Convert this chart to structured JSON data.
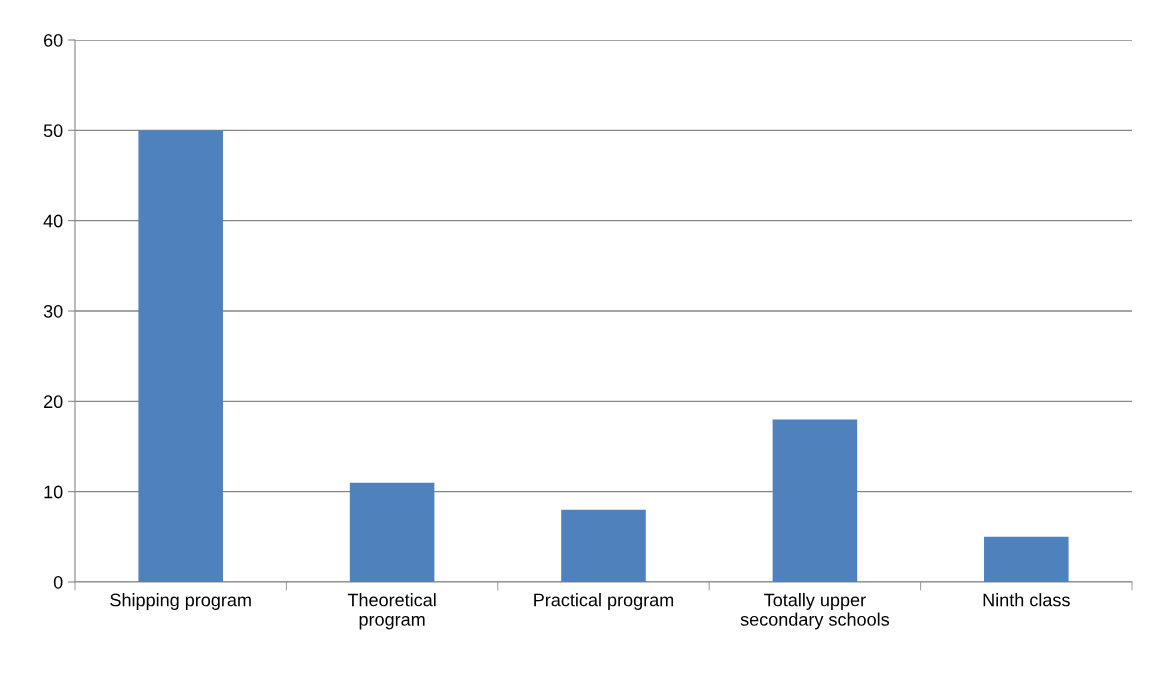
{
  "chart_data": {
    "type": "bar",
    "categories": [
      "Shipping program",
      "Theoretical program",
      "Practical program",
      "Totally upper secondary schools",
      "Ninth class"
    ],
    "values": [
      50,
      11,
      8,
      18,
      5
    ],
    "color": "#4f81bd",
    "ylim": [
      0,
      60
    ],
    "yticks": [
      0,
      10,
      20,
      30,
      40,
      50,
      60
    ],
    "grid": "y",
    "legend": false
  }
}
